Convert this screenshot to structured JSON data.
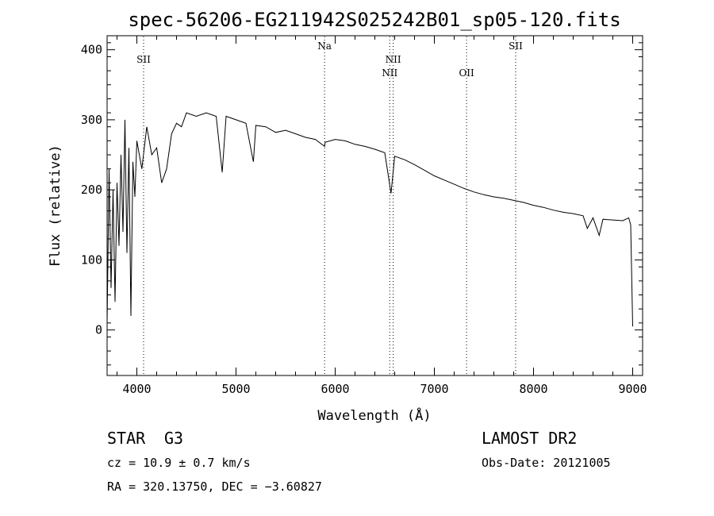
{
  "chart_data": {
    "type": "line",
    "title": "spec-56206-EG211942S025242B01_sp05-120.fits",
    "xlabel": "Wavelength (Å)",
    "ylabel": "Flux (relative)",
    "xlim": [
      3700,
      9100
    ],
    "ylim": [
      -65,
      420
    ],
    "x_ticks": [
      "4000",
      "5000",
      "6000",
      "7000",
      "8000",
      "9000"
    ],
    "y_ticks": [
      "0",
      "100",
      "200",
      "300",
      "400"
    ],
    "grid": false,
    "lines": [
      {
        "label": "SII",
        "x": 4068,
        "label_pos": "upper"
      },
      {
        "label": "Na",
        "x": 5893,
        "label_pos": "top"
      },
      {
        "label": "NII",
        "x": 6585,
        "label_pos": "upper"
      },
      {
        "label": "NII",
        "x": 6550,
        "label_pos": "middle"
      },
      {
        "label": "OII",
        "x": 7325,
        "label_pos": "lower"
      },
      {
        "label": "SII",
        "x": 7820,
        "label_pos": "top"
      }
    ],
    "series": [
      {
        "x": [
          3700,
          3720,
          3740,
          3760,
          3780,
          3800,
          3820,
          3840,
          3860,
          3880,
          3900,
          3920,
          3940,
          3960,
          3980,
          4000,
          4050,
          4100,
          4150,
          4200,
          4250,
          4300,
          4350,
          4400,
          4450,
          4500,
          4600,
          4700,
          4800,
          4861,
          4900,
          5000,
          5100,
          5175,
          5200,
          5300,
          5400,
          5500,
          5600,
          5700,
          5800,
          5893,
          5900,
          6000,
          6100,
          6200,
          6300,
          6400,
          6500,
          6563,
          6600,
          6700,
          6800,
          6900,
          7000,
          7100,
          7200,
          7300,
          7400,
          7500,
          7600,
          7700,
          7800,
          7900,
          8000,
          8100,
          8200,
          8300,
          8400,
          8500,
          8542,
          8600,
          8662,
          8700,
          8800,
          8900,
          8960,
          8980,
          9000
        ],
        "y": [
          10,
          230,
          60,
          200,
          40,
          210,
          120,
          250,
          140,
          300,
          110,
          260,
          20,
          240,
          190,
          270,
          230,
          290,
          250,
          260,
          210,
          230,
          280,
          295,
          290,
          310,
          305,
          310,
          305,
          225,
          305,
          300,
          295,
          240,
          292,
          290,
          282,
          285,
          280,
          275,
          272,
          262,
          268,
          272,
          270,
          265,
          262,
          258,
          253,
          195,
          248,
          243,
          236,
          228,
          220,
          214,
          208,
          202,
          197,
          193,
          190,
          188,
          185,
          182,
          178,
          175,
          171,
          168,
          166,
          163,
          145,
          160,
          135,
          158,
          157,
          156,
          160,
          150,
          5
        ]
      }
    ]
  },
  "info": {
    "object_class": "STAR",
    "subclass": "G3",
    "survey": "LAMOST DR2",
    "redshift": "cz = 10.9 ± 0.7 km/s",
    "obs_date": "Obs-Date: 20121005",
    "coords": "RA = 320.13750, DEC =  −3.60827"
  }
}
